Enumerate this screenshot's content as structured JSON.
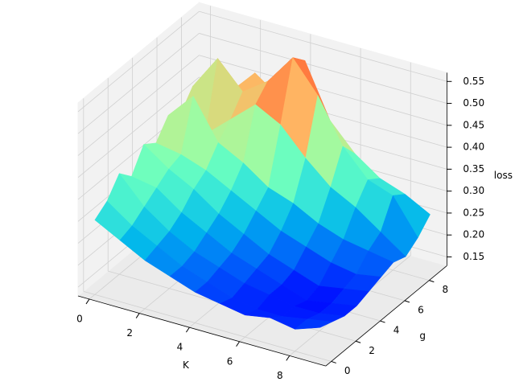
{
  "chart_data": {
    "type": "surface",
    "x": [
      0,
      1,
      2,
      3,
      4,
      5,
      6,
      7,
      8,
      9
    ],
    "y": [
      0,
      1,
      2,
      3,
      4,
      5,
      6,
      7,
      8,
      9
    ],
    "z": [
      [
        0.3,
        0.27,
        0.24,
        0.22,
        0.2,
        0.19,
        0.18,
        0.19,
        0.18,
        0.2
      ],
      [
        0.32,
        0.28,
        0.25,
        0.22,
        0.2,
        0.18,
        0.17,
        0.17,
        0.18,
        0.19
      ],
      [
        0.36,
        0.3,
        0.26,
        0.23,
        0.21,
        0.19,
        0.18,
        0.17,
        0.17,
        0.18
      ],
      [
        0.33,
        0.32,
        0.28,
        0.25,
        0.22,
        0.2,
        0.18,
        0.16,
        0.17,
        0.18
      ],
      [
        0.38,
        0.34,
        0.31,
        0.27,
        0.24,
        0.21,
        0.19,
        0.17,
        0.18,
        0.19
      ],
      [
        0.36,
        0.35,
        0.33,
        0.3,
        0.27,
        0.24,
        0.22,
        0.2,
        0.19,
        0.2
      ],
      [
        0.4,
        0.46,
        0.37,
        0.34,
        0.3,
        0.28,
        0.25,
        0.23,
        0.22,
        0.21
      ],
      [
        0.38,
        0.35,
        0.4,
        0.45,
        0.42,
        0.36,
        0.31,
        0.28,
        0.24,
        0.2
      ],
      [
        0.42,
        0.5,
        0.44,
        0.48,
        0.55,
        0.48,
        0.38,
        0.32,
        0.3,
        0.22
      ],
      [
        0.36,
        0.4,
        0.46,
        0.42,
        0.52,
        0.4,
        0.34,
        0.3,
        0.28,
        0.25
      ]
    ],
    "xlabel": "K",
    "ylabel": "g",
    "zlabel": "loss",
    "xlim": [
      -0.45,
      9.45
    ],
    "ylim": [
      -0.45,
      9.45
    ],
    "zlim": [
      0.13,
      0.57
    ],
    "xticks": [
      0,
      2,
      4,
      6,
      8
    ],
    "yticks": [
      0,
      2,
      4,
      6,
      8
    ],
    "zticks": [
      0.15,
      {
        "value": 0.2,
        "label": "0.20"
      },
      0.25,
      {
        "value": 0.3,
        "label": "0.30"
      },
      0.35,
      {
        "value": 0.4,
        "label": "0.40"
      },
      0.45,
      {
        "value": 0.5,
        "label": "0.50"
      },
      0.55
    ],
    "colormap": "rainbow",
    "grid": true
  }
}
